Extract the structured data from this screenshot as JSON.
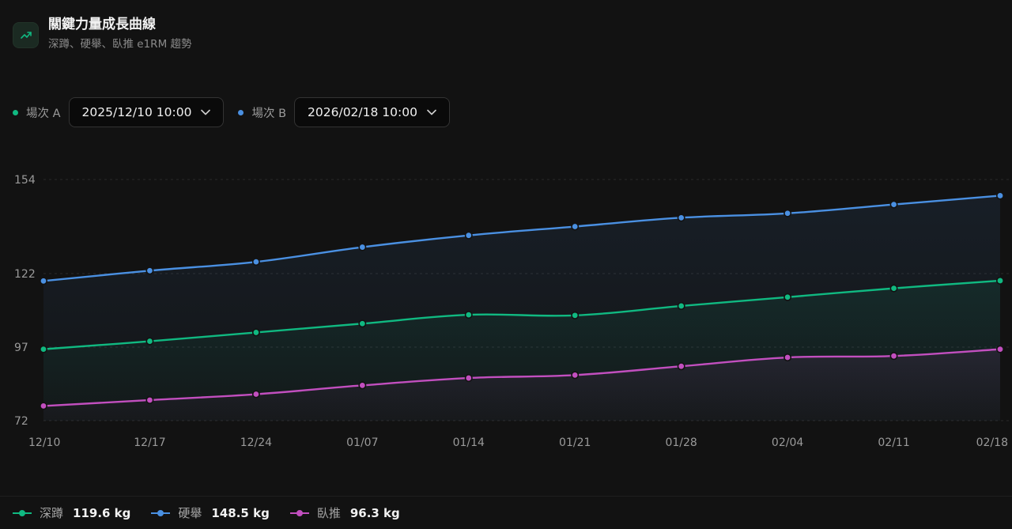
{
  "header": {
    "title": "關鍵力量成長曲線",
    "subtitle": "深蹲、硬舉、臥推 e1RM 趨勢",
    "icon": "trending-up-icon"
  },
  "selectors": [
    {
      "label": "場次 A",
      "value": "2025/12/10 10:00",
      "color": "#10b981",
      "icon": "chevron-down-icon"
    },
    {
      "label": "場次 B",
      "value": "2026/02/18 10:00",
      "color": "#4a90e2",
      "icon": "chevron-down-icon"
    }
  ],
  "chart_data": {
    "type": "line",
    "categories": [
      "12/10",
      "12/17",
      "12/24",
      "01/07",
      "01/14",
      "01/21",
      "01/28",
      "02/04",
      "02/11",
      "02/18"
    ],
    "y_ticks": [
      154,
      122,
      97,
      72
    ],
    "ylim": [
      72,
      154
    ],
    "grid": true,
    "legend": "bottom-left",
    "series": [
      {
        "name": "硬舉",
        "color": "#4a90e2",
        "values": [
          119.5,
          123,
          126,
          131,
          135,
          138,
          141,
          142.5,
          145.5,
          148.5
        ]
      },
      {
        "name": "深蹲",
        "color": "#10b981",
        "values": [
          96.3,
          99,
          102,
          105,
          108,
          107.8,
          111,
          114,
          117,
          119.6
        ]
      },
      {
        "name": "臥推",
        "color": "#c24fbf",
        "values": [
          77,
          79,
          81,
          84,
          86.5,
          87.5,
          90.5,
          93.5,
          94,
          96.3
        ]
      }
    ]
  },
  "legend": [
    {
      "name": "深蹲",
      "value": "119.6 kg",
      "color": "#10b981"
    },
    {
      "name": "硬舉",
      "value": "148.5 kg",
      "color": "#4a90e2"
    },
    {
      "name": "臥推",
      "value": "96.3 kg",
      "color": "#c24fbf"
    }
  ]
}
